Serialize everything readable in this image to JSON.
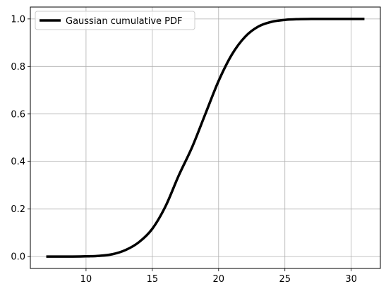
{
  "chart_data": {
    "type": "line",
    "title": "",
    "xlabel": "",
    "ylabel": "",
    "xlim": [
      5.8,
      32.2
    ],
    "ylim": [
      -0.05,
      1.05
    ],
    "x_ticks": [
      10,
      15,
      20,
      25,
      30
    ],
    "y_ticks": [
      0.0,
      0.2,
      0.4,
      0.6,
      0.8,
      1.0
    ],
    "x_tick_labels": [
      "10",
      "15",
      "20",
      "25",
      "30"
    ],
    "y_tick_labels": [
      "0.0",
      "0.2",
      "0.4",
      "0.6",
      "0.8",
      "1.0"
    ],
    "grid": true,
    "legend_position": "upper-left",
    "series": [
      {
        "name": "Gaussian cumulative PDF",
        "color": "#000000",
        "x": [
          7,
          8,
          9,
          10,
          11,
          12,
          13,
          14,
          15,
          16,
          17,
          18,
          19,
          20,
          21,
          22,
          23,
          24,
          25,
          26,
          27,
          28,
          29,
          30,
          31
        ],
        "y": [
          0.0,
          0.0,
          0.0,
          0.001,
          0.003,
          0.01,
          0.028,
          0.061,
          0.117,
          0.212,
          0.342,
          0.46,
          0.6,
          0.739,
          0.85,
          0.925,
          0.968,
          0.988,
          0.996,
          0.999,
          1.0,
          1.0,
          1.0,
          1.0,
          1.0
        ]
      }
    ]
  }
}
